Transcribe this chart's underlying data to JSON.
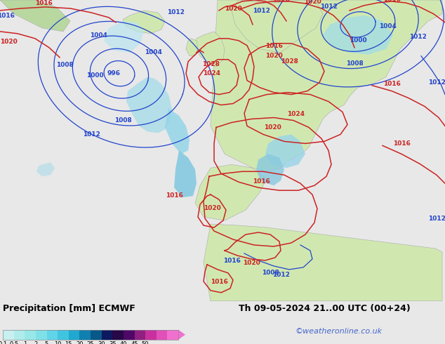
{
  "title_left": "Precipitation [mm] ECMWF",
  "title_right": "Th 09-05-2024 21..00 UTC (00+24)",
  "watermark": "©weatheronline.co.uk",
  "colorbar_labels": [
    "0.1",
    "0.5",
    "1",
    "2",
    "5",
    "10",
    "15",
    "20",
    "25",
    "30",
    "35",
    "40",
    "45",
    "50"
  ],
  "colorbar_colors": [
    "#c8f0f0",
    "#b0ecec",
    "#98e8e8",
    "#80e0e8",
    "#60d4e8",
    "#40c4e0",
    "#20a8d0",
    "#1080b0",
    "#085888",
    "#0c1860",
    "#280848",
    "#500868",
    "#902080",
    "#c830a0",
    "#e050b8",
    "#f070d0"
  ],
  "legend_bg": "#e8e8e8",
  "map_ocean_color": "#d8eaf4",
  "map_land_color": "#d0e8b0",
  "map_land2_color": "#c0d8a0",
  "figsize": [
    6.34,
    4.9
  ],
  "dpi": 100,
  "label_fontsize": 9,
  "watermark_color": "#4466cc",
  "isobar_blue_color": "#2244cc",
  "isobar_red_color": "#cc2222"
}
